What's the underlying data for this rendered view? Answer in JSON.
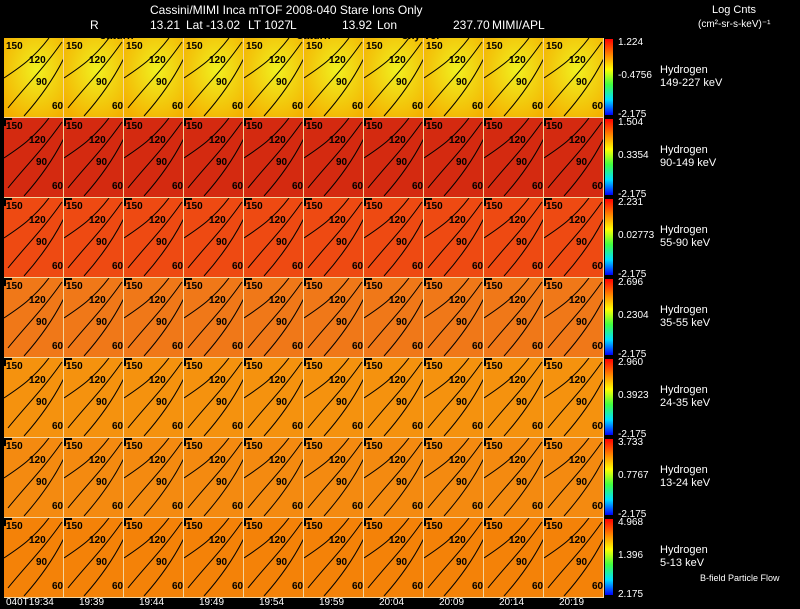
{
  "header": {
    "title": "Cassini/MIMI Inca mTOF  2008-040   Stare    Ions Only",
    "r_label": "R",
    "r_value": "13.21",
    "lat": "Lat -13.02",
    "lt": "LT 1027",
    "l": "L",
    "l_value": "13.92",
    "lon": "Lon",
    "lon_value": "237.70",
    "org": "MIMI/APL",
    "units_title": "Log Cnts",
    "units": "(cm²-sr-s-keV)⁻¹"
  },
  "overlays": {
    "saturn_1": "saturn",
    "saturn_2": "saturn",
    "sky_mode": "sky-vel"
  },
  "cell_labels": [
    "150",
    "120",
    "90",
    "60"
  ],
  "times": [
    "040T19:34",
    "19:39",
    "19:44",
    "19:49",
    "19:54",
    "19:59",
    "20:04",
    "20:09",
    "20:14",
    "20:19"
  ],
  "bands": [
    {
      "species": "Hydrogen",
      "energy": "149-227 keV",
      "max": "1.224",
      "mid": "-0.4756",
      "min": "-2.175",
      "color": "#f4b000"
    },
    {
      "species": "Hydrogen",
      "energy": "90-149 keV",
      "max": "1.504",
      "mid": "0.3354",
      "min": "-2.175",
      "color": "#d42a10"
    },
    {
      "species": "Hydrogen",
      "energy": "55-90 keV",
      "max": "2.231",
      "mid": "0.02773",
      "min": "-2.175",
      "color": "#ee4a12"
    },
    {
      "species": "Hydrogen",
      "energy": "35-55 keV",
      "max": "2.696",
      "mid": "0.2304",
      "min": "-2.175",
      "color": "#f07818"
    },
    {
      "species": "Hydrogen",
      "energy": "24-35 keV",
      "max": "2.960",
      "mid": "0.3923",
      "min": "-2.175",
      "color": "#f5920e"
    },
    {
      "species": "Hydrogen",
      "energy": "13-24 keV",
      "max": "3.733",
      "mid": "0.7767",
      "min": "-2.175",
      "color": "#f48a10"
    },
    {
      "species": "Hydrogen",
      "energy": "5-13 keV",
      "max": "4.968",
      "mid": "1.396",
      "min": "2.175",
      "color": "#f48208"
    }
  ],
  "footer_label": "B-field Particle Flow"
}
